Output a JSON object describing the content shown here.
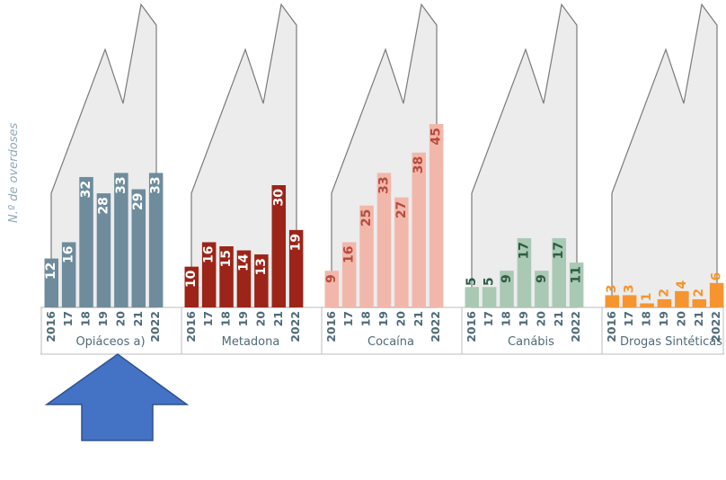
{
  "chart_data": {
    "type": "bar",
    "ylabel": "N.º de overdoses",
    "year_labels": [
      "2016",
      "17",
      "18",
      "19",
      "20",
      "21",
      "2022"
    ],
    "ylim": [
      0,
      45
    ],
    "groups": [
      {
        "name": "Opiáceos a)",
        "color": "#6e8c9c",
        "label_color": "#ffffff",
        "values": [
          12,
          16,
          32,
          28,
          33,
          29,
          33
        ]
      },
      {
        "name": "Metadona",
        "color": "#9c2418",
        "label_color": "#ffffff",
        "values": [
          10,
          16,
          15,
          14,
          13,
          30,
          19
        ]
      },
      {
        "name": "Cocaína",
        "color": "#f2b7ab",
        "label_color": "#b84a3c",
        "values": [
          9,
          16,
          25,
          33,
          27,
          38,
          45
        ]
      },
      {
        "name": "Canábis",
        "color": "#a9c9b4",
        "label_color": "#2f5b45",
        "values": [
          5,
          5,
          9,
          17,
          9,
          17,
          11
        ]
      },
      {
        "name": "Drogas Sintéticas",
        "color": "#f6952f",
        "label_color": "#f6952f",
        "values": [
          3,
          3,
          1,
          2,
          4,
          2,
          6
        ]
      }
    ],
    "colors": {
      "silhouette_fill": "#ececec",
      "silhouette_stroke": "#7a7a7a",
      "axis": "#bdbdbd",
      "tick_text": "#4f6b78",
      "arrow_fill": "#4472c4",
      "arrow_stroke": "#2f528f"
    },
    "arrow_icon": "up-arrow-icon"
  }
}
